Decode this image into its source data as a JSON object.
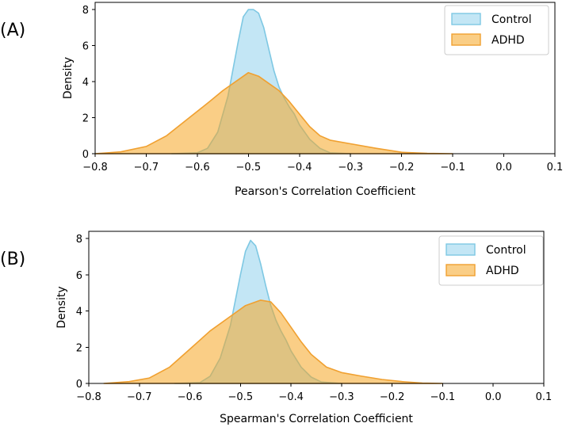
{
  "chart_data": [
    {
      "type": "area",
      "panel_label": "(A)",
      "xlabel": "Pearson's Correlation Coefficient",
      "ylabel": "Density",
      "xlim": [
        -0.8,
        0.1
      ],
      "ylim": [
        0,
        8.4
      ],
      "xticks": [
        -0.8,
        -0.7,
        -0.6,
        -0.5,
        -0.4,
        -0.3,
        -0.2,
        -0.1,
        0.0,
        0.1
      ],
      "xtick_labels": [
        "−0.8",
        "−0.7",
        "−0.6",
        "−0.5",
        "−0.4",
        "−0.3",
        "−0.2",
        "−0.1",
        "0.0",
        "0.1"
      ],
      "yticks": [
        0,
        2,
        4,
        6,
        8
      ],
      "ytick_labels": [
        "0",
        "2",
        "4",
        "6",
        "8"
      ],
      "legend_position": "top-right",
      "series": [
        {
          "name": "Control",
          "fill": "#87ceeb",
          "stroke": "#7ec8e3",
          "x": [
            -0.65,
            -0.6,
            -0.58,
            -0.56,
            -0.54,
            -0.52,
            -0.51,
            -0.5,
            -0.49,
            -0.48,
            -0.47,
            -0.46,
            -0.45,
            -0.44,
            -0.43,
            -0.42,
            -0.41,
            -0.4,
            -0.38,
            -0.36,
            -0.34,
            -0.3
          ],
          "y": [
            0,
            0.05,
            0.3,
            1.2,
            3.2,
            6.2,
            7.6,
            8.0,
            8.0,
            7.8,
            7.0,
            5.8,
            4.6,
            3.7,
            3.1,
            2.6,
            2.2,
            1.6,
            0.8,
            0.3,
            0.05,
            0
          ]
        },
        {
          "name": "ADHD",
          "fill": "#f5a623",
          "stroke": "#f0a030",
          "x": [
            -0.8,
            -0.75,
            -0.7,
            -0.66,
            -0.62,
            -0.58,
            -0.55,
            -0.52,
            -0.5,
            -0.48,
            -0.46,
            -0.44,
            -0.42,
            -0.4,
            -0.38,
            -0.36,
            -0.34,
            -0.3,
            -0.25,
            -0.2,
            -0.15,
            -0.1
          ],
          "y": [
            0,
            0.1,
            0.4,
            1.0,
            1.9,
            2.8,
            3.5,
            4.1,
            4.5,
            4.3,
            3.9,
            3.5,
            2.9,
            2.2,
            1.5,
            1.0,
            0.75,
            0.55,
            0.3,
            0.08,
            0.02,
            0
          ]
        }
      ]
    },
    {
      "type": "area",
      "panel_label": "(B)",
      "xlabel": "Spearman's Correlation Coefficient",
      "ylabel": "Density",
      "xlim": [
        -0.8,
        0.1
      ],
      "ylim": [
        0,
        8.4
      ],
      "xticks": [
        -0.8,
        -0.7,
        -0.6,
        -0.5,
        -0.4,
        -0.3,
        -0.2,
        -0.1,
        0.0,
        0.1
      ],
      "xtick_labels": [
        "−0.8",
        "−0.7",
        "−0.6",
        "−0.5",
        "−0.4",
        "−0.3",
        "−0.2",
        "−0.1",
        "0.0",
        "0.1"
      ],
      "yticks": [
        0,
        2,
        4,
        6,
        8
      ],
      "ytick_labels": [
        "0",
        "2",
        "4",
        "6",
        "8"
      ],
      "legend_position": "top-right",
      "series": [
        {
          "name": "Control",
          "fill": "#87ceeb",
          "stroke": "#7ec8e3",
          "x": [
            -0.63,
            -0.58,
            -0.56,
            -0.54,
            -0.52,
            -0.5,
            -0.49,
            -0.48,
            -0.47,
            -0.46,
            -0.45,
            -0.44,
            -0.43,
            -0.42,
            -0.41,
            -0.4,
            -0.38,
            -0.36,
            -0.34,
            -0.3
          ],
          "y": [
            0,
            0.05,
            0.4,
            1.4,
            3.2,
            6.0,
            7.3,
            7.9,
            7.6,
            6.6,
            5.4,
            4.3,
            3.5,
            2.9,
            2.4,
            1.8,
            0.9,
            0.35,
            0.08,
            0
          ]
        },
        {
          "name": "ADHD",
          "fill": "#f5a623",
          "stroke": "#f0a030",
          "x": [
            -0.77,
            -0.72,
            -0.68,
            -0.64,
            -0.6,
            -0.56,
            -0.52,
            -0.49,
            -0.46,
            -0.44,
            -0.42,
            -0.4,
            -0.38,
            -0.36,
            -0.33,
            -0.3,
            -0.26,
            -0.22,
            -0.18,
            -0.14,
            -0.1
          ],
          "y": [
            0,
            0.1,
            0.3,
            0.9,
            1.9,
            2.9,
            3.7,
            4.3,
            4.6,
            4.5,
            3.9,
            3.1,
            2.3,
            1.6,
            0.9,
            0.6,
            0.4,
            0.22,
            0.1,
            0.02,
            0
          ]
        }
      ]
    }
  ]
}
